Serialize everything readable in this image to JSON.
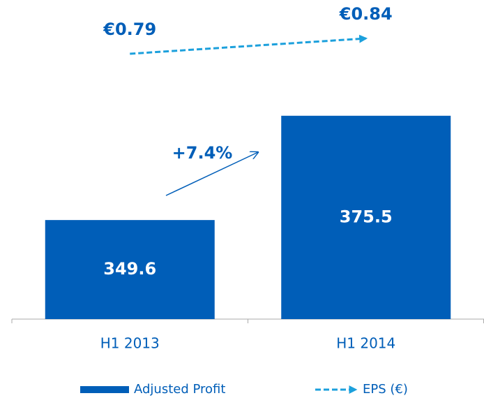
{
  "chart_data": {
    "type": "bar",
    "categories": [
      "H1 2013",
      "H1 2014"
    ],
    "series": [
      {
        "name": "Adjusted Profit",
        "color": "#005eb8",
        "values": [
          349.6,
          375.5
        ]
      },
      {
        "name": "EPS (€)",
        "color": "#1ca0dc",
        "axis": "y2",
        "type": "line",
        "values": [
          0.79,
          0.84
        ],
        "value_labels": [
          "€0.79",
          "€0.84"
        ]
      }
    ],
    "ylim": [
      325,
      385
    ],
    "y2lim": [
      0.75,
      0.9
    ],
    "annotation": "+7.4%"
  }
}
